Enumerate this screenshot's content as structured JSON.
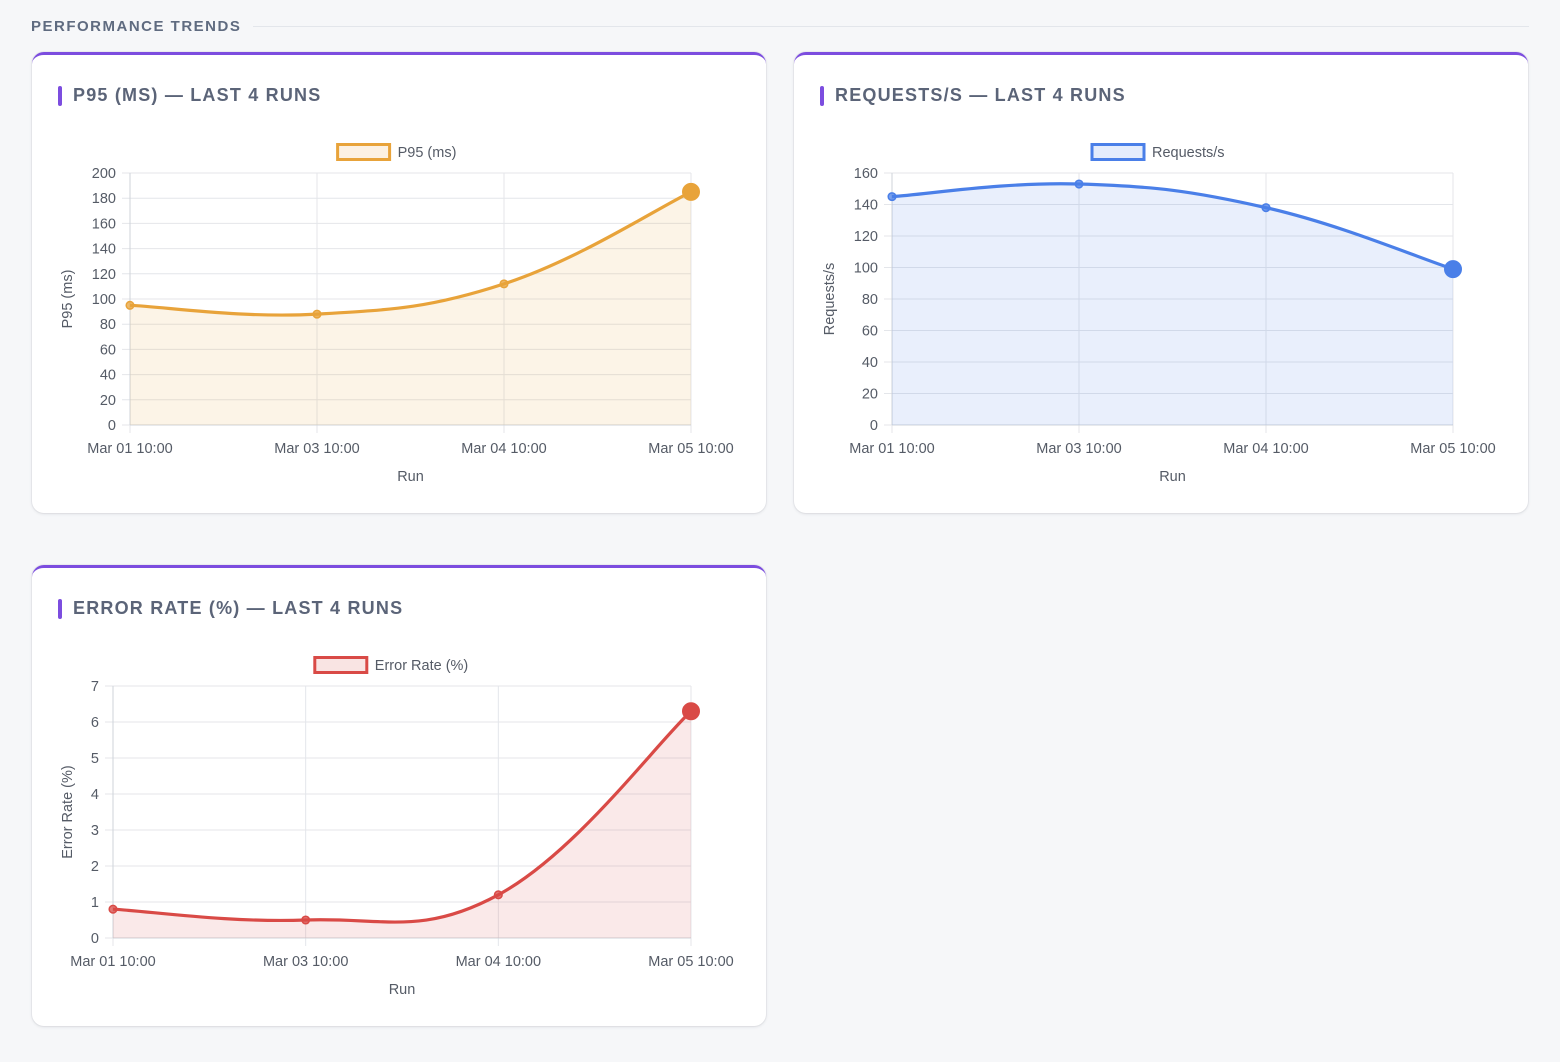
{
  "section": {
    "title": "PERFORMANCE TRENDS"
  },
  "cards": [
    {
      "title": "P95 (MS) — LAST 4 RUNS"
    },
    {
      "title": "REQUESTS/S — LAST 4 RUNS"
    },
    {
      "title": "ERROR RATE (%) — LAST 4 RUNS"
    }
  ],
  "chart_data": [
    {
      "type": "line",
      "categories": [
        "Mar 01 10:00",
        "Mar 03 10:00",
        "Mar 04 10:00",
        "Mar 05 10:00"
      ],
      "series": [
        {
          "name": "P95 (ms)",
          "values": [
            95,
            88,
            112,
            185
          ],
          "color": "#e8a33a"
        }
      ],
      "xlabel": "Run",
      "ylabel": "P95 (ms)",
      "ylim": [
        0,
        200
      ],
      "yticks": [
        0,
        20,
        40,
        60,
        80,
        100,
        120,
        140,
        160,
        180,
        200
      ],
      "fill": true,
      "legend": "top-center",
      "grid": true
    },
    {
      "type": "line",
      "categories": [
        "Mar 01 10:00",
        "Mar 03 10:00",
        "Mar 04 10:00",
        "Mar 05 10:00"
      ],
      "series": [
        {
          "name": "Requests/s",
          "values": [
            145,
            153,
            138,
            99
          ],
          "color": "#4a7fe8"
        }
      ],
      "xlabel": "Run",
      "ylabel": "Requests/s",
      "ylim": [
        0,
        160
      ],
      "yticks": [
        0,
        20,
        40,
        60,
        80,
        100,
        120,
        140,
        160
      ],
      "fill": true,
      "legend": "top-center",
      "grid": true
    },
    {
      "type": "line",
      "categories": [
        "Mar 01 10:00",
        "Mar 03 10:00",
        "Mar 04 10:00",
        "Mar 05 10:00"
      ],
      "series": [
        {
          "name": "Error Rate (%)",
          "values": [
            0.8,
            0.5,
            1.2,
            6.3
          ],
          "color": "#d94a46"
        }
      ],
      "xlabel": "Run",
      "ylabel": "Error Rate (%)",
      "ylim": [
        0,
        7
      ],
      "yticks": [
        0,
        1,
        2,
        3,
        4,
        5,
        6,
        7
      ],
      "fill": true,
      "legend": "top-center",
      "grid": true
    }
  ]
}
